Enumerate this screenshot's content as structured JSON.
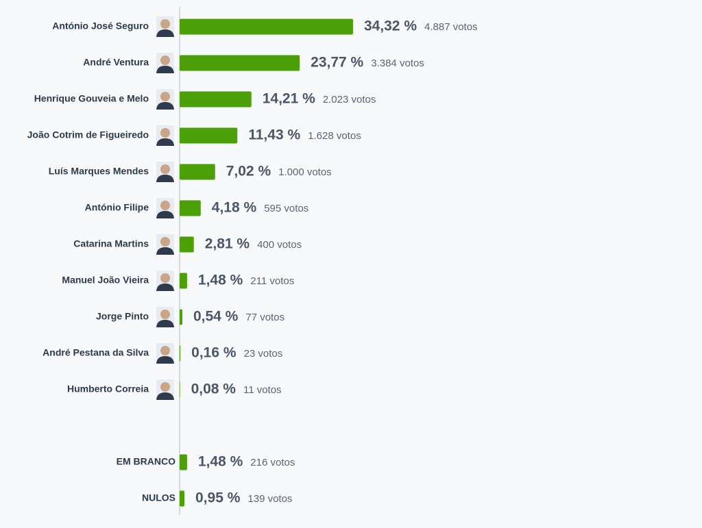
{
  "chart_data": [
    {
      "type": "bar",
      "orientation": "horizontal",
      "color": "#4c9f07",
      "portraits": true,
      "xlim": [
        0,
        100
      ],
      "categories": [
        "António José Seguro",
        "André Ventura",
        "Henrique Gouveia e Melo",
        "João Cotrim de Figueiredo",
        "Luís Marques Mendes",
        "António Filipe",
        "Catarina Martins",
        "Manuel João Vieira",
        "Jorge Pinto",
        "André Pestana da Silva",
        "Humberto Correia"
      ],
      "values": [
        34.32,
        23.77,
        14.21,
        11.43,
        7.02,
        4.18,
        2.81,
        1.48,
        0.54,
        0.16,
        0.08
      ],
      "value_labels": [
        "34,32 %",
        "23,77 %",
        "14,21 %",
        "11,43 %",
        "7,02 %",
        "4,18 %",
        "2,81 %",
        "1,48 %",
        "0,54 %",
        "0,16 %",
        "0,08 %"
      ],
      "vote_labels": [
        "4.887 votos",
        "3.384 votos",
        "2.023 votos",
        "1.628 votos",
        "1.000 votos",
        "595 votos",
        "400 votos",
        "211 votos",
        "77 votos",
        "23 votos",
        "11 votos"
      ]
    },
    {
      "type": "bar",
      "orientation": "horizontal",
      "color": "#4c9f07",
      "portraits": false,
      "xlim": [
        0,
        100
      ],
      "categories": [
        "EM BRANCO",
        "NULOS"
      ],
      "values": [
        1.48,
        0.95
      ],
      "value_labels": [
        "1,48 %",
        "0,95 %"
      ],
      "vote_labels": [
        "216 votos",
        "139 votos"
      ]
    }
  ]
}
